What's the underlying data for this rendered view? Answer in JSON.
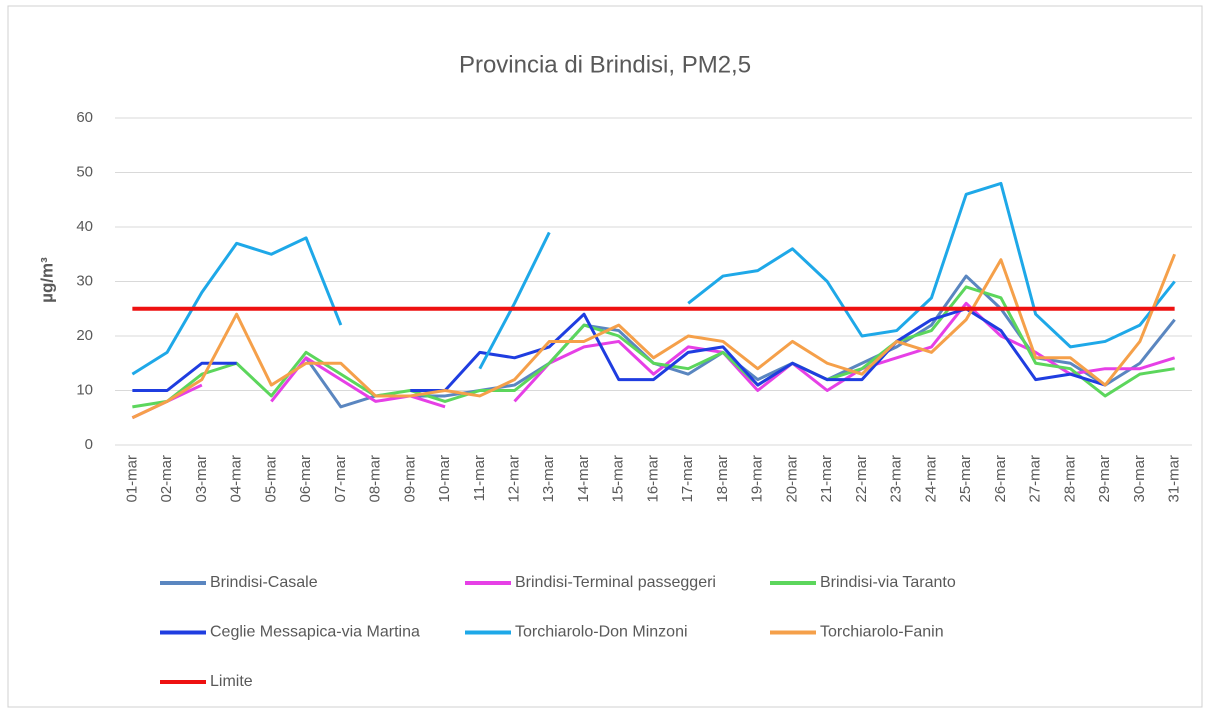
{
  "chart_data": {
    "type": "line",
    "title": "Provincia di Brindisi, PM2,5",
    "y_label": "µg/m³",
    "categories": [
      "01-mar",
      "02-mar",
      "03-mar",
      "04-mar",
      "05-mar",
      "06-mar",
      "07-mar",
      "08-mar",
      "09-mar",
      "10-mar",
      "11-mar",
      "12-mar",
      "13-mar",
      "14-mar",
      "15-mar",
      "16-mar",
      "17-mar",
      "18-mar",
      "19-mar",
      "20-mar",
      "21-mar",
      "22-mar",
      "23-mar",
      "24-mar",
      "25-mar",
      "26-mar",
      "27-mar",
      "28-mar",
      "29-mar",
      "30-mar",
      "31-mar"
    ],
    "ylim": [
      0,
      60
    ],
    "yticks": [
      0,
      10,
      20,
      30,
      40,
      50,
      60
    ],
    "grid": true,
    "series": [
      {
        "name": "Brindisi-Casale",
        "color": "#5a86c0",
        "values": [
          null,
          null,
          null,
          null,
          null,
          16,
          7,
          9,
          9,
          9,
          10,
          11,
          15,
          22,
          21,
          15,
          13,
          17,
          12,
          15,
          12,
          15,
          18,
          22,
          31,
          25,
          16,
          15,
          11,
          15,
          23
        ]
      },
      {
        "name": "Brindisi-Terminal passeggeri",
        "color": "#e640e6",
        "values": [
          5,
          8,
          11,
          null,
          8,
          16,
          12,
          8,
          9,
          7,
          null,
          8,
          15,
          18,
          19,
          13,
          18,
          17,
          10,
          15,
          10,
          14,
          16,
          18,
          26,
          20,
          17,
          13,
          14,
          14,
          16
        ]
      },
      {
        "name": "Brindisi-via Taranto",
        "color": "#5cd65c",
        "values": [
          7,
          8,
          13,
          15,
          9,
          17,
          13,
          9,
          10,
          8,
          10,
          10,
          15,
          22,
          20,
          15,
          14,
          17,
          11,
          15,
          12,
          14,
          19,
          21,
          29,
          27,
          15,
          14,
          9,
          13,
          14
        ]
      },
      {
        "name": "Ceglie Messapica-via Martina",
        "color": "#1f3de0",
        "values": [
          10,
          10,
          15,
          15,
          null,
          null,
          null,
          null,
          10,
          10,
          17,
          16,
          18,
          24,
          12,
          12,
          17,
          18,
          11,
          15,
          12,
          12,
          19,
          23,
          25,
          21,
          12,
          13,
          11,
          null,
          null
        ]
      },
      {
        "name": "Torchiarolo-Don Minzoni",
        "color": "#1ea8e8",
        "values": [
          13,
          17,
          28,
          37,
          35,
          38,
          22,
          null,
          null,
          null,
          14,
          26,
          39,
          null,
          null,
          null,
          26,
          31,
          32,
          36,
          30,
          20,
          21,
          27,
          46,
          48,
          24,
          18,
          19,
          22,
          30
        ]
      },
      {
        "name": "Torchiarolo-Fanin",
        "color": "#f5a04a",
        "values": [
          5,
          8,
          12,
          24,
          11,
          15,
          15,
          9,
          9,
          10,
          9,
          12,
          19,
          19,
          22,
          16,
          20,
          19,
          14,
          19,
          15,
          13,
          19,
          17,
          23,
          34,
          16,
          16,
          11,
          19,
          35
        ]
      },
      {
        "name": "Limite",
        "color": "#ee1111",
        "values": [
          25,
          25,
          25,
          25,
          25,
          25,
          25,
          25,
          25,
          25,
          25,
          25,
          25,
          25,
          25,
          25,
          25,
          25,
          25,
          25,
          25,
          25,
          25,
          25,
          25,
          25,
          25,
          25,
          25,
          25,
          25
        ]
      }
    ]
  }
}
